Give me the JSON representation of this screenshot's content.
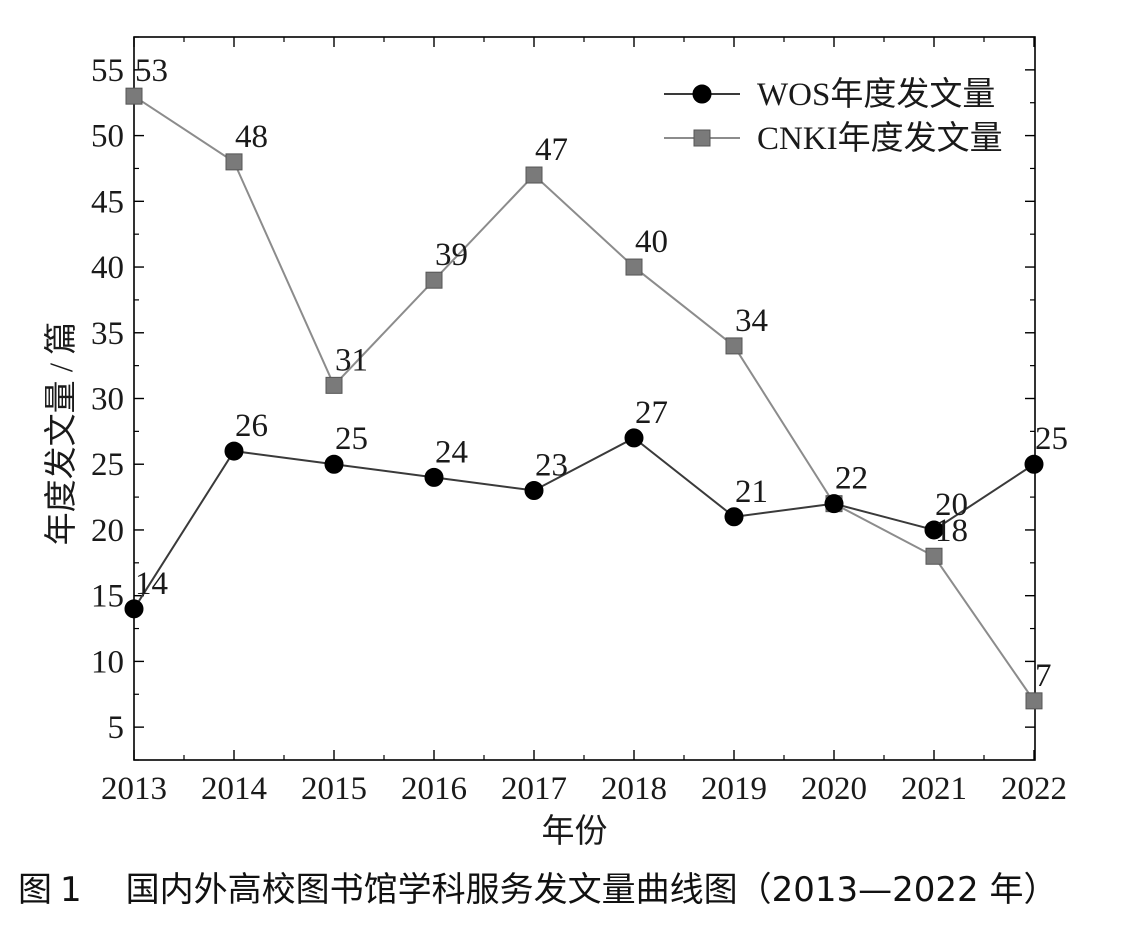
{
  "chart_data": {
    "type": "line",
    "title": "",
    "xlabel": "年份",
    "ylabel": "年度发文量 / 篇",
    "x": [
      "2013",
      "2014",
      "2015",
      "2016",
      "2017",
      "2018",
      "2019",
      "2020",
      "2021",
      "2022"
    ],
    "ylim": [
      2.5,
      57.5
    ],
    "yticks": [
      5,
      10,
      15,
      20,
      25,
      30,
      35,
      40,
      45,
      50,
      55
    ],
    "series": [
      {
        "name": "WOS年度发文量",
        "marker": "circle",
        "color": "#000000",
        "line_color": "#3a3a3a",
        "values": [
          14,
          26,
          25,
          24,
          23,
          27,
          21,
          22,
          20,
          25
        ]
      },
      {
        "name": "CNKI年度发文量",
        "marker": "square",
        "color": "#7a7a7a",
        "line_color": "#8c8c8c",
        "values": [
          53,
          48,
          31,
          39,
          47,
          40,
          34,
          22,
          18,
          7
        ]
      }
    ],
    "legend": "top-right",
    "grid": false
  },
  "caption": {
    "label": "图",
    "number": "1",
    "text": "国内外高校图书馆学科服务发文量曲线图（2013—2022 年）"
  }
}
